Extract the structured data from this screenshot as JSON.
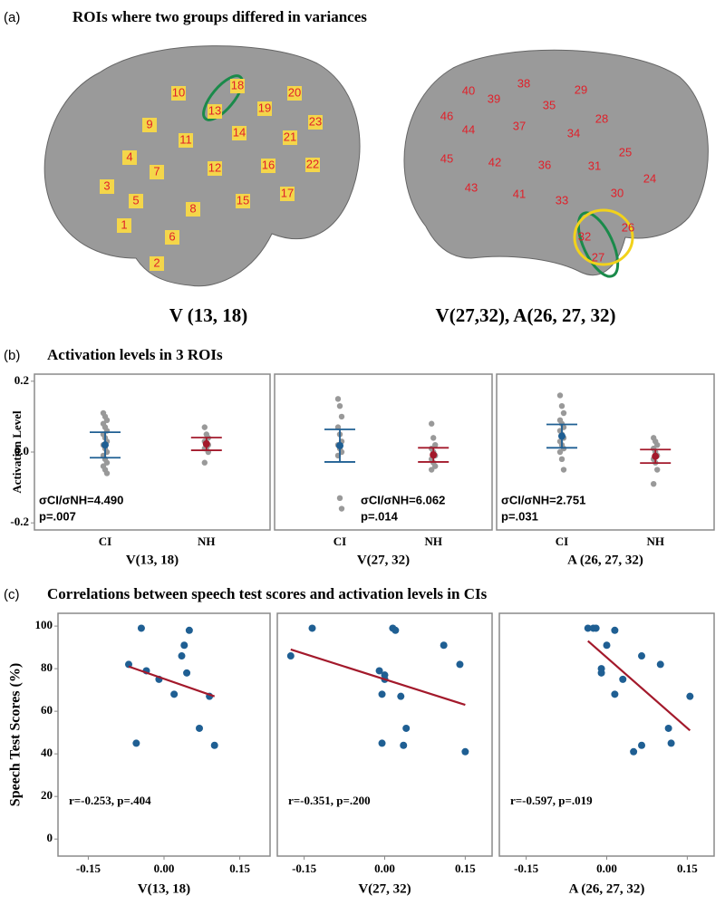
{
  "panels": [
    {
      "label": "(a)",
      "title": "ROIs where two groups differed in variances"
    },
    {
      "label": "(b)",
      "title": "Activation levels in 3 ROIs"
    },
    {
      "label": "(c)",
      "title": "Correlations between speech test scores and activation levels in CIs"
    }
  ],
  "brains": [
    {
      "caption": "V (13, 18)",
      "regions": [
        "10",
        "18",
        "20",
        "9",
        "13",
        "19",
        "23",
        "11",
        "14",
        "21",
        "4",
        "7",
        "12",
        "16",
        "22",
        "3",
        "5",
        "8",
        "15",
        "17",
        "1",
        "6",
        "2"
      ]
    },
    {
      "caption": "V(27,32), A(26, 27, 32)",
      "regions": [
        "40",
        "38",
        "29",
        "46",
        "39",
        "35",
        "28",
        "44",
        "37",
        "34",
        "25",
        "45",
        "42",
        "36",
        "31",
        "24",
        "43",
        "41",
        "33",
        "30",
        "26",
        "32",
        "27"
      ]
    }
  ],
  "chart_data": [
    {
      "type": "strip",
      "ylabel": "Activation Level",
      "xlabel": "V(13, 18)",
      "categories": [
        "CI",
        "NH"
      ],
      "colors": [
        "#1f5f93",
        "#a3192b"
      ],
      "point_color": "#999999",
      "points": [
        [
          0.11,
          0.1,
          0.09,
          0.08,
          0.07,
          0.06,
          0.05,
          0.04,
          0.03,
          0.02,
          0.01,
          0.0,
          -0.01,
          -0.02,
          -0.03,
          -0.04,
          -0.05,
          -0.06
        ],
        [
          0.07,
          0.05,
          0.04,
          0.03,
          0.02,
          0.02,
          0.01,
          0.01,
          0.0,
          -0.03
        ]
      ],
      "means": [
        0.02,
        0.023
      ],
      "errors": [
        0.036,
        0.018
      ],
      "ylim": [
        -0.22,
        0.22
      ],
      "yticks": [
        {
          "value": 0.2,
          "label": "0.2"
        },
        {
          "value": 0,
          "label": "0.0"
        },
        {
          "value": -0.2,
          "label": "-0.2"
        }
      ],
      "annotations": [
        "σCI/σNH=4.490",
        "p=.007"
      ]
    },
    {
      "type": "strip",
      "xlabel": "V(27, 32)",
      "categories": [
        "CI",
        "NH"
      ],
      "colors": [
        "#1f5f93",
        "#a3192b"
      ],
      "point_color": "#999999",
      "points": [
        [
          0.15,
          0.13,
          0.1,
          0.07,
          0.05,
          0.03,
          0.02,
          0.01,
          0.0,
          -0.01,
          -0.13,
          -0.16
        ],
        [
          0.08,
          0.04,
          0.02,
          0.01,
          0.0,
          -0.01,
          -0.02,
          -0.03,
          -0.04,
          -0.05
        ]
      ],
      "means": [
        0.018,
        -0.008
      ],
      "errors": [
        0.046,
        0.02
      ],
      "ylim": [
        -0.22,
        0.22
      ],
      "annotations": [
        "σCI/σNH=6.062",
        "p=.014"
      ]
    },
    {
      "type": "strip",
      "xlabel": "A (26, 27, 32)",
      "categories": [
        "CI",
        "NH"
      ],
      "colors": [
        "#1f5f93",
        "#a3192b"
      ],
      "point_color": "#999999",
      "points": [
        [
          0.16,
          0.13,
          0.11,
          0.09,
          0.08,
          0.07,
          0.06,
          0.05,
          0.04,
          0.03,
          0.02,
          0.01,
          0.0,
          -0.02,
          -0.05
        ],
        [
          0.04,
          0.03,
          0.02,
          0.01,
          0.0,
          -0.01,
          -0.02,
          -0.03,
          -0.05,
          -0.09
        ]
      ],
      "means": [
        0.045,
        -0.012
      ],
      "errors": [
        0.033,
        0.019
      ],
      "ylim": [
        -0.22,
        0.22
      ],
      "annotations": [
        "σCI/σNH=2.751",
        "p=.031"
      ]
    },
    {
      "type": "scatter",
      "ylabel": "Speech Test Scores (%)",
      "xlabel": "V(13, 18)",
      "color": "#1f5f93",
      "fit_color": "#a3192b",
      "x": [
        -0.07,
        -0.055,
        -0.045,
        -0.035,
        -0.01,
        0.02,
        0.035,
        0.04,
        0.045,
        0.05,
        0.07,
        0.09,
        0.1
      ],
      "y": [
        82,
        45,
        99,
        79,
        75,
        68,
        86,
        91,
        78,
        98,
        52,
        67,
        44
      ],
      "fit": {
        "x": [
          -0.07,
          0.1
        ],
        "y": [
          81,
          67
        ]
      },
      "xlim": [
        -0.21,
        0.21
      ],
      "ylim": [
        -8,
        106
      ],
      "xticks": [
        {
          "value": -0.15,
          "label": "-0.15"
        },
        {
          "value": 0,
          "label": "0.00"
        },
        {
          "value": 0.15,
          "label": "0.15"
        }
      ],
      "yticks": [
        0,
        20,
        40,
        60,
        80,
        100
      ],
      "annotations": [
        "r=-0.253, p=.404"
      ]
    },
    {
      "type": "scatter",
      "xlabel": "V(27, 32)",
      "color": "#1f5f93",
      "fit_color": "#a3192b",
      "x": [
        -0.175,
        -0.135,
        -0.01,
        0.0,
        0.0,
        -0.005,
        -0.005,
        0.015,
        0.02,
        0.03,
        0.035,
        0.04,
        0.11,
        0.14,
        0.15
      ],
      "y": [
        86,
        99,
        79,
        77,
        75,
        68,
        45,
        99,
        98,
        67,
        44,
        52,
        91,
        82,
        41
      ],
      "fit": {
        "x": [
          -0.175,
          0.15
        ],
        "y": [
          89,
          63
        ]
      },
      "xlim": [
        -0.2,
        0.2
      ],
      "ylim": [
        -8,
        106
      ],
      "xticks": [
        {
          "value": -0.15,
          "label": "-0.15"
        },
        {
          "value": 0,
          "label": "0.00"
        },
        {
          "value": 0.15,
          "label": "0.15"
        }
      ],
      "annotations": [
        "r=-0.351, p=.200"
      ]
    },
    {
      "type": "scatter",
      "xlabel": "A (26, 27, 32)",
      "color": "#1f5f93",
      "fit_color": "#a3192b",
      "x": [
        -0.035,
        -0.025,
        -0.02,
        -0.01,
        -0.01,
        0.0,
        0.015,
        0.015,
        0.03,
        0.05,
        0.065,
        0.065,
        0.1,
        0.115,
        0.12,
        0.155
      ],
      "y": [
        99,
        99,
        99,
        78,
        80,
        91,
        68,
        98,
        75,
        41,
        44,
        86,
        82,
        52,
        45,
        67
      ],
      "fit": {
        "x": [
          -0.035,
          0.155
        ],
        "y": [
          93,
          51
        ]
      },
      "xlim": [
        -0.2,
        0.2
      ],
      "ylim": [
        -8,
        106
      ],
      "xticks": [
        {
          "value": -0.15,
          "label": "-0.15"
        },
        {
          "value": 0,
          "label": "0.00"
        },
        {
          "value": 0.15,
          "label": "0.15"
        }
      ],
      "annotations": [
        "r=-0.597, p=.019"
      ]
    }
  ]
}
